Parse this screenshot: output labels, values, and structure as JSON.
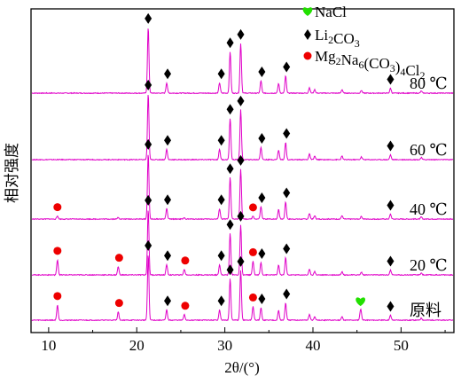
{
  "chart_data": {
    "type": "line",
    "xlabel": "2θ/(°)",
    "ylabel": "相对强度",
    "xlim": [
      8,
      56
    ],
    "xticks": [
      10,
      20,
      30,
      40,
      50
    ],
    "grid": false,
    "line_color": "#e000c8",
    "legend": {
      "position": "top-right",
      "items": [
        {
          "key": "nacl",
          "label": "NaCl",
          "marker": "heart",
          "color": "#22e000"
        },
        {
          "key": "li2co3",
          "label": "Li2CO3",
          "marker": "diamond",
          "color": "#000000"
        },
        {
          "key": "mg2na6",
          "label": "Mg2Na6(CO3)4Cl2",
          "marker": "circle",
          "color": "#ee0000"
        }
      ]
    },
    "peaks": {
      "li2co3": [
        {
          "x": 21.3,
          "h": 0.95
        },
        {
          "x": 23.4,
          "h": 0.15
        },
        {
          "x": 29.4,
          "h": 0.15
        },
        {
          "x": 30.6,
          "h": 0.6
        },
        {
          "x": 31.8,
          "h": 0.72
        },
        {
          "x": 34.1,
          "h": 0.18
        },
        {
          "x": 36.1,
          "h": 0.14
        },
        {
          "x": 36.9,
          "h": 0.25
        },
        {
          "x": 39.6,
          "h": 0.08
        },
        {
          "x": 40.2,
          "h": 0.05
        },
        {
          "x": 43.3,
          "h": 0.05
        },
        {
          "x": 45.5,
          "h": 0.04
        },
        {
          "x": 48.8,
          "h": 0.07
        },
        {
          "x": 52.3,
          "h": 0.03
        }
      ],
      "mg2na6": [
        {
          "x": 11.0,
          "h": 0.22
        },
        {
          "x": 17.9,
          "h": 0.12
        },
        {
          "x": 25.4,
          "h": 0.08
        },
        {
          "x": 33.2,
          "h": 0.2
        }
      ],
      "nacl": [
        {
          "x": 45.4,
          "h": 0.14
        }
      ]
    },
    "series": [
      {
        "name": "80 ℃",
        "li_scale": 1.0,
        "mg_scale": 0.0,
        "nacl_scale": 0.0,
        "markers": [
          {
            "type": "diamond",
            "x": 21.3
          },
          {
            "type": "diamond",
            "x": 23.5
          },
          {
            "type": "diamond",
            "x": 29.6
          },
          {
            "type": "diamond",
            "x": 30.6
          },
          {
            "type": "diamond",
            "x": 31.8
          },
          {
            "type": "diamond",
            "x": 34.2
          },
          {
            "type": "diamond",
            "x": 37.0
          },
          {
            "type": "diamond",
            "x": 48.8
          }
        ]
      },
      {
        "name": "60 ℃",
        "li_scale": 1.0,
        "mg_scale": 0.0,
        "nacl_scale": 0.0,
        "markers": [
          {
            "type": "diamond",
            "x": 21.3
          },
          {
            "type": "diamond",
            "x": 23.5
          },
          {
            "type": "diamond",
            "x": 29.6
          },
          {
            "type": "diamond",
            "x": 30.6
          },
          {
            "type": "diamond",
            "x": 31.8
          },
          {
            "type": "diamond",
            "x": 34.2
          },
          {
            "type": "diamond",
            "x": 37.0
          },
          {
            "type": "diamond",
            "x": 48.8
          }
        ]
      },
      {
        "name": "40 ℃",
        "li_scale": 1.0,
        "mg_scale": 0.2,
        "nacl_scale": 0.0,
        "markers": [
          {
            "type": "circle",
            "x": 11.0
          },
          {
            "type": "diamond",
            "x": 21.3
          },
          {
            "type": "diamond",
            "x": 23.5
          },
          {
            "type": "diamond",
            "x": 29.6
          },
          {
            "type": "diamond",
            "x": 30.6
          },
          {
            "type": "diamond",
            "x": 31.8
          },
          {
            "type": "circle",
            "x": 33.2
          },
          {
            "type": "diamond",
            "x": 34.2
          },
          {
            "type": "diamond",
            "x": 37.0
          },
          {
            "type": "diamond",
            "x": 48.8
          }
        ]
      },
      {
        "name": "20 ℃",
        "li_scale": 1.0,
        "mg_scale": 1.0,
        "nacl_scale": 0.0,
        "markers": [
          {
            "type": "circle",
            "x": 11.0
          },
          {
            "type": "circle",
            "x": 18.0
          },
          {
            "type": "diamond",
            "x": 21.3
          },
          {
            "type": "diamond",
            "x": 23.5
          },
          {
            "type": "circle",
            "x": 25.5
          },
          {
            "type": "diamond",
            "x": 29.6
          },
          {
            "type": "diamond",
            "x": 30.6
          },
          {
            "type": "diamond",
            "x": 31.8
          },
          {
            "type": "circle",
            "x": 33.2
          },
          {
            "type": "diamond",
            "x": 34.2
          },
          {
            "type": "diamond",
            "x": 37.0
          },
          {
            "type": "diamond",
            "x": 48.8
          }
        ]
      },
      {
        "name": "原料",
        "li_scale": 1.0,
        "mg_scale": 1.0,
        "nacl_scale": 1.0,
        "markers": [
          {
            "type": "circle",
            "x": 11.0
          },
          {
            "type": "circle",
            "x": 18.0
          },
          {
            "type": "diamond",
            "x": 21.3
          },
          {
            "type": "diamond",
            "x": 23.5
          },
          {
            "type": "circle",
            "x": 25.5
          },
          {
            "type": "diamond",
            "x": 29.6
          },
          {
            "type": "diamond",
            "x": 30.6
          },
          {
            "type": "diamond",
            "x": 31.8
          },
          {
            "type": "circle",
            "x": 33.2
          },
          {
            "type": "diamond",
            "x": 34.2
          },
          {
            "type": "diamond",
            "x": 37.0
          },
          {
            "type": "heart",
            "x": 45.4
          },
          {
            "type": "diamond",
            "x": 48.8
          }
        ]
      }
    ]
  }
}
